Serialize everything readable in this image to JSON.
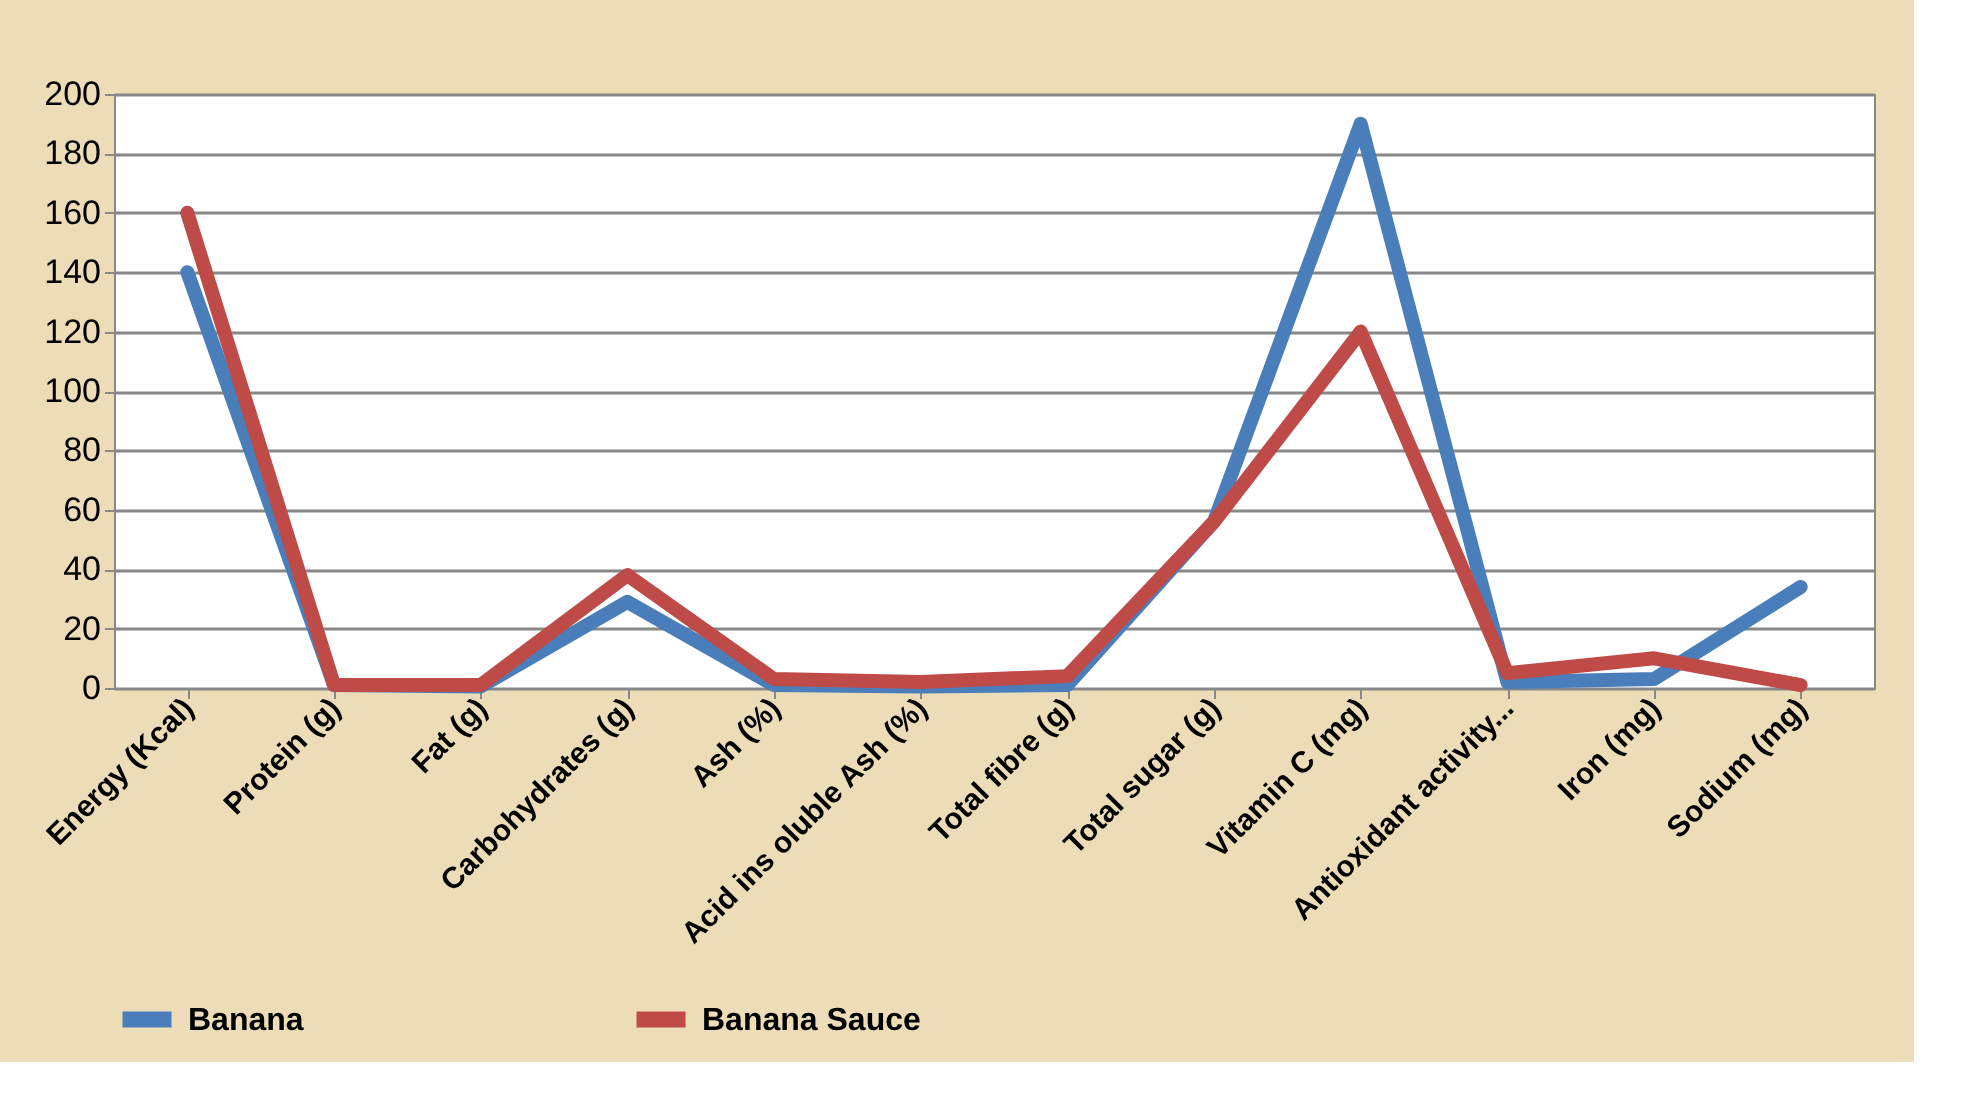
{
  "chart_data": {
    "type": "line",
    "categories": [
      "Energy (Kcal)",
      "Protein (g)",
      "Fat (g)",
      "Carbohydrates (g)",
      "Ash (%)",
      "Acid ins oluble Ash (%)",
      "Total fibre (g)",
      "Total sugar (g)",
      "Vitamin C (mg)",
      "Antioxidant activity...",
      "Iron (mg)",
      "Sodium (mg)"
    ],
    "series": [
      {
        "name": "Banana",
        "color": "#4a7ebb",
        "values": [
          140,
          1,
          0.5,
          29,
          1,
          0.5,
          1,
          56,
          190,
          2,
          3,
          34
        ]
      },
      {
        "name": "Banana Sauce",
        "color": "#be4b48",
        "values": [
          160,
          1,
          1,
          38,
          3,
          2,
          4,
          56,
          120,
          5,
          10,
          1
        ]
      }
    ],
    "ylim": [
      0,
      200
    ],
    "yticks": [
      0,
      20,
      40,
      60,
      80,
      100,
      120,
      140,
      160,
      180,
      200
    ],
    "grid": "y",
    "legend": "bottom",
    "marker": "none",
    "line_style": "solid"
  }
}
